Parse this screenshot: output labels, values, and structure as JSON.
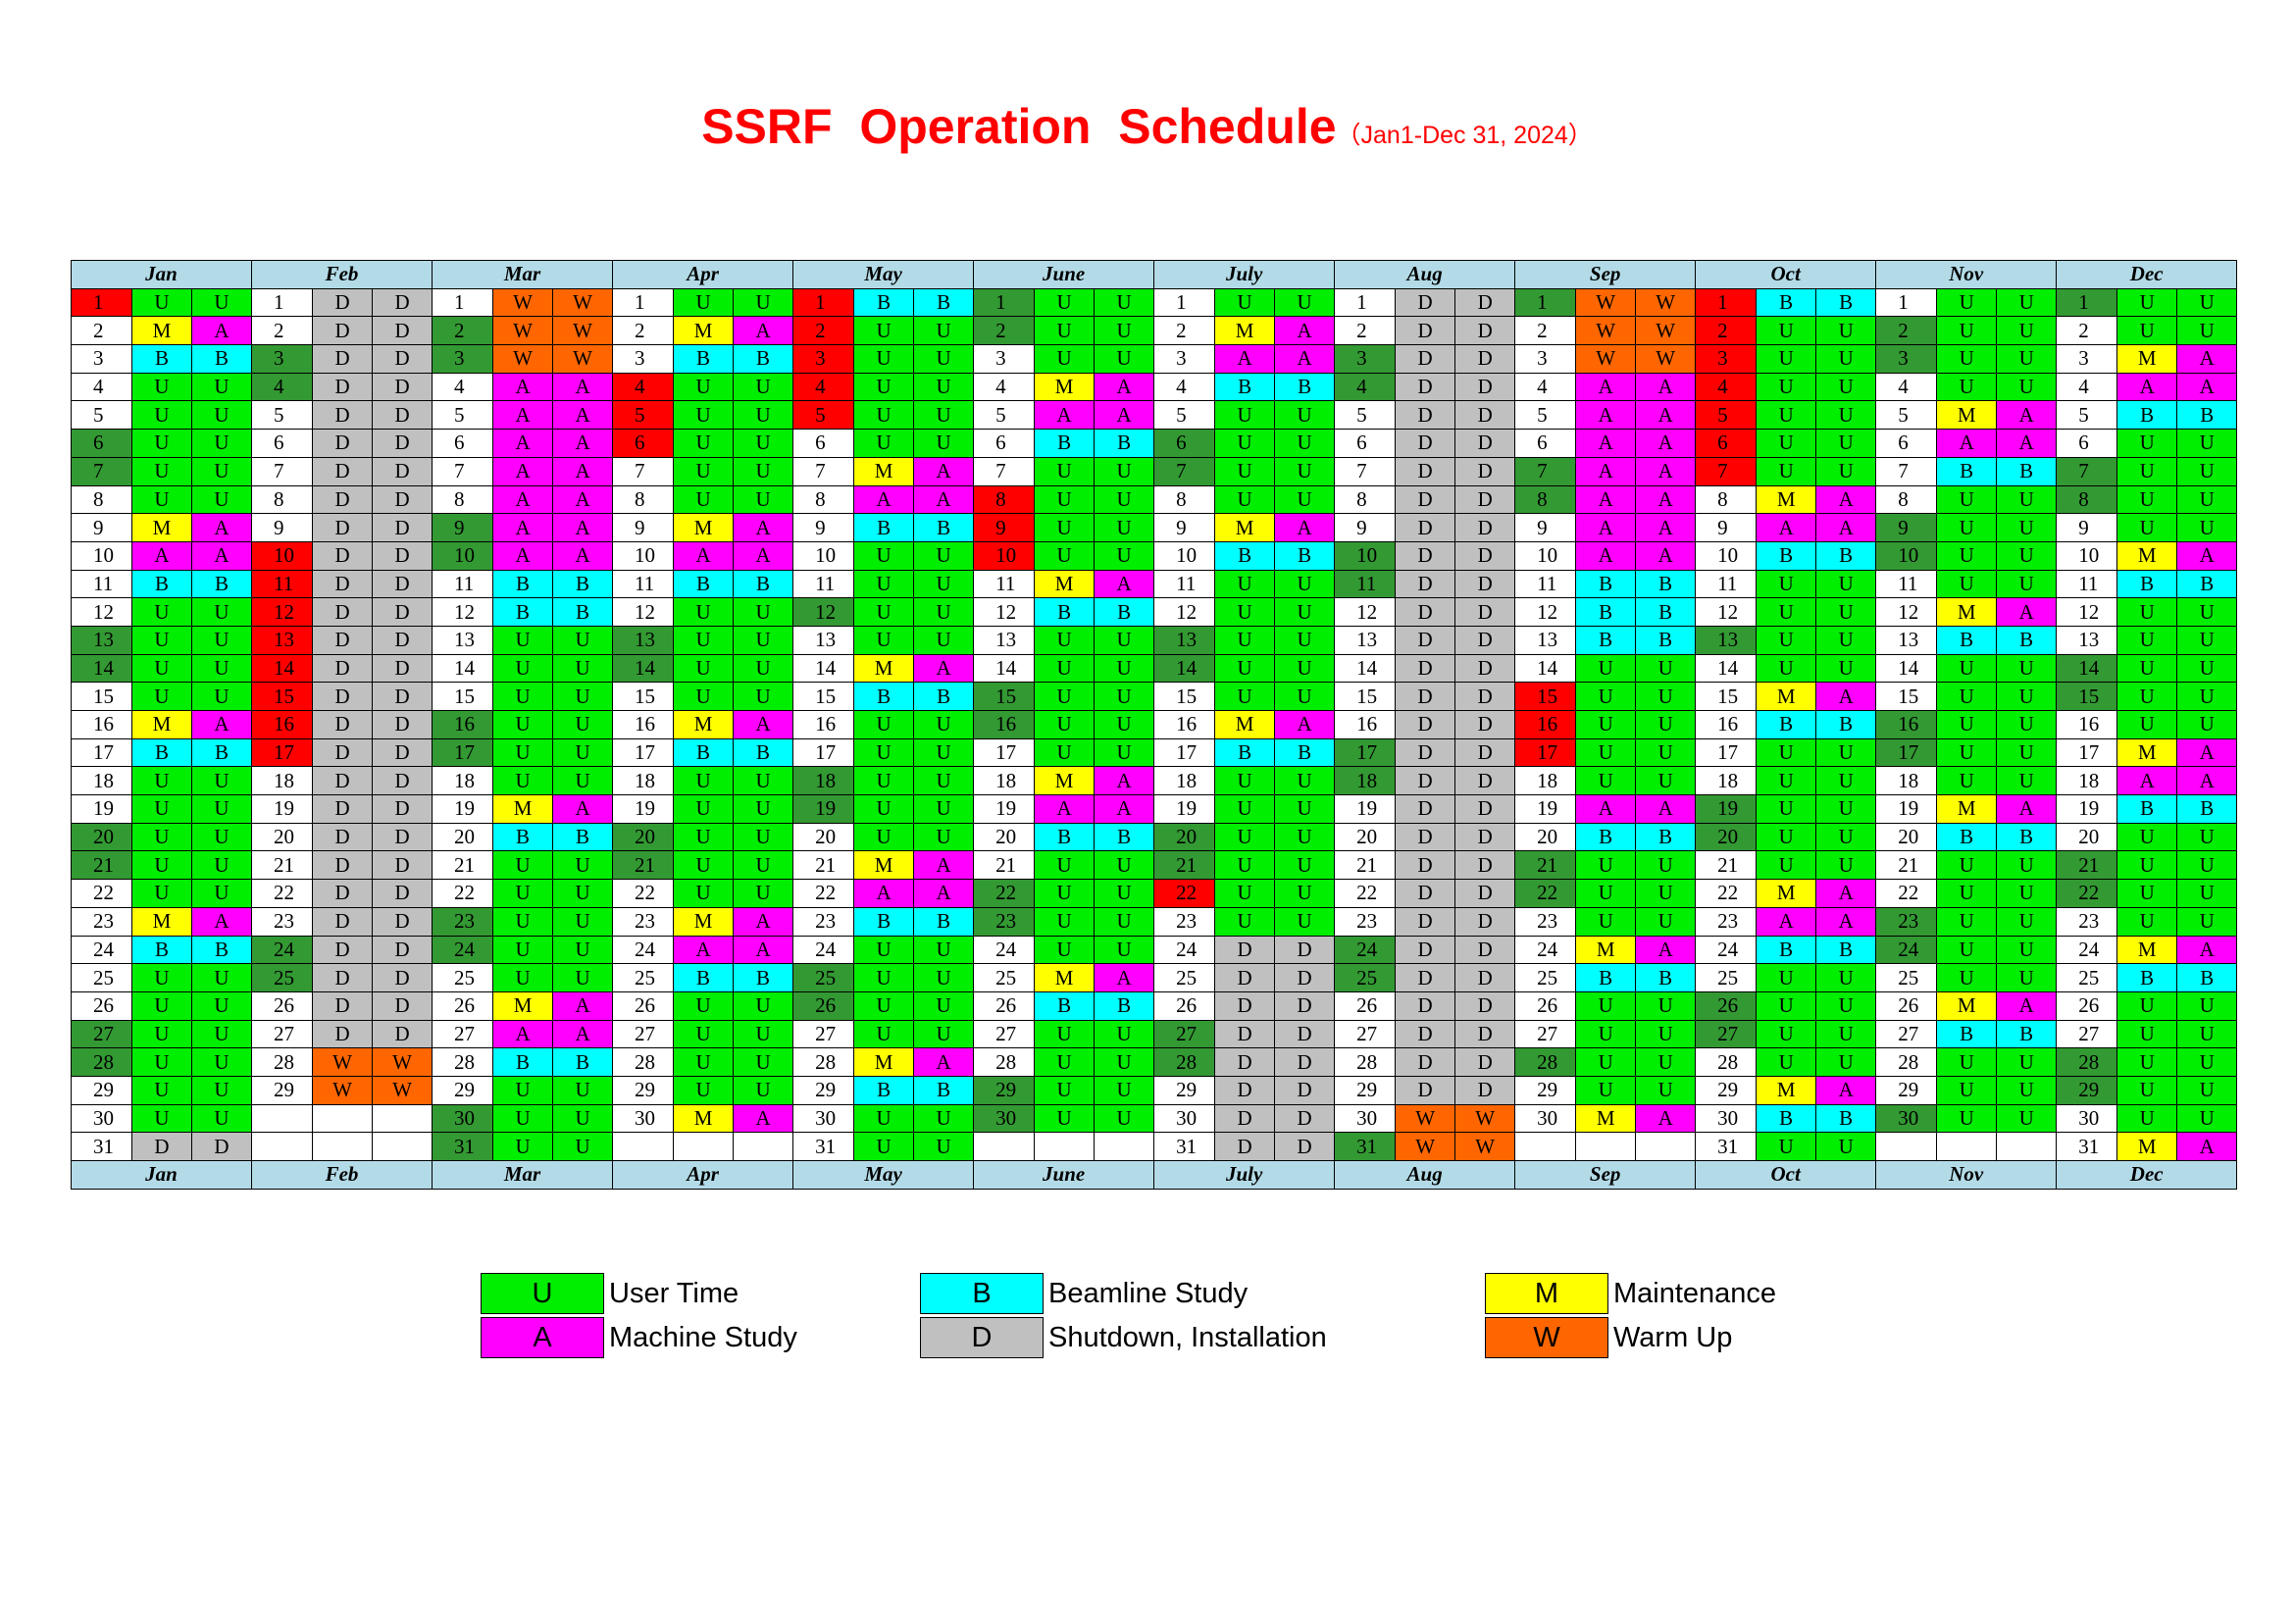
{
  "title": {
    "main": "SSRF  Operation  Schedule",
    "sub": "（Jan1-Dec 31, 2024）"
  },
  "colors": {
    "U": "#00ee00",
    "A": "#ff00ff",
    "B": "#00ffff",
    "M": "#ffff00",
    "D": "#c0c0c0",
    "W": "#ff6600",
    "weekend": "#339933",
    "holiday": "#ff0000",
    "header": "#b3dbe7"
  },
  "months": [
    {
      "name": "Jan",
      "days": [
        "1HUU",
        "2_MA",
        "3_BB",
        "4_UU",
        "5_UU",
        "6GUU",
        "7GUU",
        "8_UU",
        "9_MA",
        "10_AA",
        "11_BB",
        "12_UU",
        "13GUU",
        "14GUU",
        "15_UU",
        "16_MA",
        "17_BB",
        "18_UU",
        "19_UU",
        "20GUU",
        "21GUU",
        "22_UU",
        "23_MA",
        "24_BB",
        "25_UU",
        "26_UU",
        "27GUU",
        "28GUU",
        "29_UU",
        "30_UU",
        "31_DD"
      ]
    },
    {
      "name": "Feb",
      "days": [
        "1_DD",
        "2_DD",
        "3GDD",
        "4GDD",
        "5_DD",
        "6_DD",
        "7_DD",
        "8_DD",
        "9_DD",
        "10HDD",
        "11HDD",
        "12HDD",
        "13HDD",
        "14HDD",
        "15HDD",
        "16HDD",
        "17HDD",
        "18_DD",
        "19_DD",
        "20_DD",
        "21_DD",
        "22_DD",
        "23_DD",
        "24GDD",
        "25GDD",
        "26_DD",
        "27_DD",
        "28_WW",
        "29_WW"
      ]
    },
    {
      "name": "Mar",
      "days": [
        "1_WW",
        "2GWW",
        "3GWW",
        "4_AA",
        "5_AA",
        "6_AA",
        "7_AA",
        "8_AA",
        "9GAA",
        "10GAA",
        "11_BB",
        "12_BB",
        "13_UU",
        "14_UU",
        "15_UU",
        "16GUU",
        "17GUU",
        "18_UU",
        "19_MA",
        "20_BB",
        "21_UU",
        "22_UU",
        "23GUU",
        "24GUU",
        "25_UU",
        "26_MA",
        "27_AA",
        "28_BB",
        "29_UU",
        "30GUU",
        "31GUU"
      ]
    },
    {
      "name": "Apr",
      "days": [
        "1_UU",
        "2_MA",
        "3_BB",
        "4HUU",
        "5HUU",
        "6HUU",
        "7_UU",
        "8_UU",
        "9_MA",
        "10_AA",
        "11_BB",
        "12_UU",
        "13GUU",
        "14GUU",
        "15_UU",
        "16_MA",
        "17_BB",
        "18_UU",
        "19_UU",
        "20GUU",
        "21GUU",
        "22_UU",
        "23_MA",
        "24_AA",
        "25_BB",
        "26_UU",
        "27_UU",
        "28_UU",
        "29_UU",
        "30_MA"
      ]
    },
    {
      "name": "May",
      "days": [
        "1HBB",
        "2HUU",
        "3HUU",
        "4HUU",
        "5HUU",
        "6_UU",
        "7_MA",
        "8_AA",
        "9_BB",
        "10_UU",
        "11_UU",
        "12GUU",
        "13_UU",
        "14_MA",
        "15_BB",
        "16_UU",
        "17_UU",
        "18GUU",
        "19GUU",
        "20_UU",
        "21_MA",
        "22_AA",
        "23_BB",
        "24_UU",
        "25GUU",
        "26GUU",
        "27_UU",
        "28_MA",
        "29_BB",
        "30_UU",
        "31_UU"
      ]
    },
    {
      "name": "June",
      "days": [
        "1GUU",
        "2GUU",
        "3_UU",
        "4_MA",
        "5_AA",
        "6_BB",
        "7_UU",
        "8HUU",
        "9HUU",
        "10HUU",
        "11_MA",
        "12_BB",
        "13_UU",
        "14_UU",
        "15GUU",
        "16GUU",
        "17_UU",
        "18_MA",
        "19_AA",
        "20_BB",
        "21_UU",
        "22GUU",
        "23GUU",
        "24_UU",
        "25_MA",
        "26_BB",
        "27_UU",
        "28_UU",
        "29GUU",
        "30GUU"
      ]
    },
    {
      "name": "July",
      "days": [
        "1_UU",
        "2_MA",
        "3_AA",
        "4_BB",
        "5_UU",
        "6GUU",
        "7GUU",
        "8_UU",
        "9_MA",
        "10_BB",
        "11_UU",
        "12_UU",
        "13GUU",
        "14GUU",
        "15_UU",
        "16_MA",
        "17_BB",
        "18_UU",
        "19_UU",
        "20GUU",
        "21GUU",
        "22HUU",
        "23_UU",
        "24_DD",
        "25_DD",
        "26_DD",
        "27GDD",
        "28GDD",
        "29_DD",
        "30_DD",
        "31_DD"
      ]
    },
    {
      "name": "Aug",
      "days": [
        "1_DD",
        "2_DD",
        "3GDD",
        "4GDD",
        "5_DD",
        "6_DD",
        "7_DD",
        "8_DD",
        "9_DD",
        "10GDD",
        "11GDD",
        "12_DD",
        "13_DD",
        "14_DD",
        "15_DD",
        "16_DD",
        "17GDD",
        "18GDD",
        "19_DD",
        "20_DD",
        "21_DD",
        "22_DD",
        "23_DD",
        "24GDD",
        "25GDD",
        "26_DD",
        "27_DD",
        "28_DD",
        "29_DD",
        "30_WW",
        "31GWW"
      ]
    },
    {
      "name": "Sep",
      "days": [
        "1GWW",
        "2_WW",
        "3_WW",
        "4_AA",
        "5_AA",
        "6_AA",
        "7GAA",
        "8GAA",
        "9_AA",
        "10_AA",
        "11_BB",
        "12_BB",
        "13_BB",
        "14_UU",
        "15HUU",
        "16HUU",
        "17HUU",
        "18_UU",
        "19_AA",
        "20_BB",
        "21GUU",
        "22GUU",
        "23_UU",
        "24_MA",
        "25_BB",
        "26_UU",
        "27_UU",
        "28GUU",
        "29_UU",
        "30_MA"
      ]
    },
    {
      "name": "Oct",
      "days": [
        "1HBB",
        "2HUU",
        "3HUU",
        "4HUU",
        "5HUU",
        "6HUU",
        "7HUU",
        "8_MA",
        "9_AA",
        "10_BB",
        "11_UU",
        "12_UU",
        "13GUU",
        "14_UU",
        "15_MA",
        "16_BB",
        "17_UU",
        "18_UU",
        "19GUU",
        "20GUU",
        "21_UU",
        "22_MA",
        "23_AA",
        "24_BB",
        "25_UU",
        "26GUU",
        "27GUU",
        "28_UU",
        "29_MA",
        "30_BB",
        "31_UU"
      ]
    },
    {
      "name": "Nov",
      "days": [
        "1_UU",
        "2GUU",
        "3GUU",
        "4_UU",
        "5_MA",
        "6_AA",
        "7_BB",
        "8_UU",
        "9GUU",
        "10GUU",
        "11_UU",
        "12_MA",
        "13_BB",
        "14_UU",
        "15_UU",
        "16GUU",
        "17GUU",
        "18_UU",
        "19_MA",
        "20_BB",
        "21_UU",
        "22_UU",
        "23GUU",
        "24GUU",
        "25_UU",
        "26_MA",
        "27_BB",
        "28_UU",
        "29_UU",
        "30GUU"
      ]
    },
    {
      "name": "Dec",
      "days": [
        "1GUU",
        "2_UU",
        "3_MA",
        "4_AA",
        "5_BB",
        "6_UU",
        "7GUU",
        "8GUU",
        "9_UU",
        "10_MA",
        "11_BB",
        "12_UU",
        "13_UU",
        "14GUU",
        "15GUU",
        "16_UU",
        "17_MA",
        "18_AA",
        "19_BB",
        "20_UU",
        "21GUU",
        "22GUU",
        "23_UU",
        "24_MA",
        "25_BB",
        "26_UU",
        "27_UU",
        "28GUU",
        "29GUU",
        "30_UU",
        "31_MA"
      ]
    }
  ],
  "legend": [
    {
      "code": "U",
      "label": "User Time"
    },
    {
      "code": "A",
      "label": "Machine Study"
    },
    {
      "code": "B",
      "label": "Beamline Study"
    },
    {
      "code": "D",
      "label": "Shutdown, Installation"
    },
    {
      "code": "M",
      "label": "Maintenance"
    },
    {
      "code": "W",
      "label": "Warm Up"
    }
  ]
}
